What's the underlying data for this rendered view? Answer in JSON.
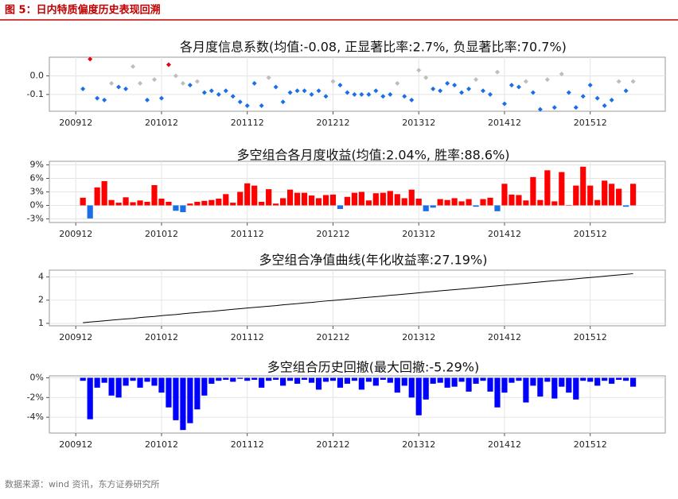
{
  "header": {
    "title": "图 5：日内特质偏度历史表现回溯"
  },
  "source": "数据来源：wind 资讯，东方证券研究所",
  "x_axis": {
    "x": [
      1,
      2,
      3,
      4,
      5,
      6,
      7,
      8,
      9,
      10,
      11,
      12,
      13,
      14,
      15,
      16,
      17,
      18,
      19,
      20,
      21,
      22,
      23,
      24,
      25,
      26,
      27,
      28,
      29,
      30,
      31,
      32,
      33,
      34,
      35,
      36,
      37,
      38,
      39,
      40,
      41,
      42,
      43,
      44,
      45,
      46,
      47,
      48,
      49,
      50,
      51,
      52,
      53,
      54,
      55,
      56,
      57,
      58,
      59,
      60,
      61,
      62,
      63,
      64,
      65,
      66,
      67,
      68,
      69,
      70,
      71,
      72,
      73,
      74,
      75,
      76,
      77,
      78
    ],
    "xlim": [
      -3.7,
      82.5
    ],
    "xticks": [
      {
        "value": 0,
        "label": "200912"
      },
      {
        "value": 12,
        "label": "201012"
      },
      {
        "value": 24,
        "label": "201112"
      },
      {
        "value": 36,
        "label": "201212"
      },
      {
        "value": 48,
        "label": "201312"
      },
      {
        "value": 60,
        "label": "201412"
      },
      {
        "value": 72,
        "label": "201512"
      }
    ]
  },
  "chart_data": [
    {
      "type": "scatter",
      "title": "各月度信息系数(均值:-0.08, 正显著比率:2.7%, 负显著比率:70.7%)",
      "values": [
        -0.07,
        0.09,
        -0.12,
        -0.13,
        -0.04,
        -0.06,
        -0.07,
        0.05,
        -0.04,
        -0.13,
        -0.02,
        -0.12,
        0.06,
        0.0,
        -0.04,
        -0.05,
        -0.03,
        -0.09,
        -0.08,
        -0.1,
        -0.08,
        -0.11,
        -0.14,
        -0.16,
        -0.04,
        -0.16,
        -0.01,
        -0.06,
        -0.14,
        -0.09,
        -0.08,
        -0.08,
        -0.1,
        -0.08,
        -0.11,
        -0.03,
        -0.05,
        -0.09,
        -0.1,
        -0.1,
        -0.1,
        -0.08,
        -0.11,
        -0.1,
        -0.04,
        -0.11,
        -0.13,
        0.03,
        -0.01,
        -0.07,
        -0.08,
        -0.04,
        -0.05,
        -0.09,
        -0.07,
        -0.02,
        -0.08,
        -0.1,
        0.02,
        -0.15,
        -0.05,
        -0.06,
        -0.03,
        -0.09,
        -0.18,
        -0.02,
        -0.17,
        0.01,
        -0.09,
        -0.17,
        -0.11,
        -0.05,
        -0.12,
        -0.16,
        -0.13,
        -0.03,
        -0.08,
        -0.03
      ],
      "colors": [
        "#1a6fe8",
        "#e8000b",
        "#1a6fe8",
        "#1a6fe8",
        "#bdbdbd",
        "#1a6fe8",
        "#1a6fe8",
        "#bdbdbd",
        "#bdbdbd",
        "#1a6fe8",
        "#bdbdbd",
        "#1a6fe8",
        "#e8000b",
        "#bdbdbd",
        "#bdbdbd",
        "#1a6fe8",
        "#bdbdbd",
        "#1a6fe8",
        "#1a6fe8",
        "#1a6fe8",
        "#1a6fe8",
        "#1a6fe8",
        "#1a6fe8",
        "#1a6fe8",
        "#1a6fe8",
        "#1a6fe8",
        "#bdbdbd",
        "#1a6fe8",
        "#1a6fe8",
        "#1a6fe8",
        "#1a6fe8",
        "#1a6fe8",
        "#1a6fe8",
        "#1a6fe8",
        "#1a6fe8",
        "#bdbdbd",
        "#1a6fe8",
        "#1a6fe8",
        "#1a6fe8",
        "#1a6fe8",
        "#1a6fe8",
        "#1a6fe8",
        "#1a6fe8",
        "#1a6fe8",
        "#bdbdbd",
        "#1a6fe8",
        "#1a6fe8",
        "#bdbdbd",
        "#bdbdbd",
        "#1a6fe8",
        "#1a6fe8",
        "#1a6fe8",
        "#1a6fe8",
        "#1a6fe8",
        "#1a6fe8",
        "#bdbdbd",
        "#1a6fe8",
        "#1a6fe8",
        "#bdbdbd",
        "#1a6fe8",
        "#1a6fe8",
        "#1a6fe8",
        "#bdbdbd",
        "#1a6fe8",
        "#1a6fe8",
        "#bdbdbd",
        "#1a6fe8",
        "#bdbdbd",
        "#1a6fe8",
        "#1a6fe8",
        "#1a6fe8",
        "#1a6fe8",
        "#1a6fe8",
        "#1a6fe8",
        "#1a6fe8",
        "#bdbdbd",
        "#1a6fe8",
        "#bdbdbd"
      ],
      "ylim": [
        -0.19,
        0.1
      ],
      "yticks": [
        {
          "value": 0,
          "label": "0.0"
        },
        -0.1
      ],
      "grid": true
    },
    {
      "type": "bar",
      "title": "多空组合各月度收益(均值:2.04%, 胜率:88.6%)",
      "values": [
        1.7,
        -2.9,
        4.0,
        5.4,
        1.2,
        0.6,
        1.8,
        0.7,
        1.1,
        0.8,
        4.5,
        1.5,
        0.8,
        -1.2,
        -1.5,
        0.4,
        0.8,
        1.0,
        1.2,
        1.5,
        2.5,
        0.6,
        3.0,
        4.9,
        4.4,
        0.8,
        3.6,
        0.4,
        1.6,
        3.5,
        2.8,
        2.8,
        2.2,
        1.6,
        2.3,
        2.4,
        -0.8,
        1.9,
        2.8,
        3.0,
        1.1,
        2.7,
        2.8,
        3.2,
        2.5,
        1.6,
        3.5,
        1.5,
        -1.3,
        -0.5,
        1.4,
        1.2,
        1.6,
        0.9,
        1.4,
        -0.3,
        1.4,
        1.7,
        -1.3,
        4.8,
        2.4,
        2.3,
        1.1,
        6.3,
        1.2,
        7.8,
        0.9,
        7.4,
        0.1,
        4.4,
        8.6,
        4.4,
        1.2,
        5.5,
        4.8,
        3.7,
        -0.3,
        4.8
      ],
      "color": "#ff0000",
      "negative_color": "#1a6fe8",
      "ylim": [
        -3.8,
        9.8
      ],
      "yticks": [
        {
          "value": -3,
          "label": "-3%"
        },
        {
          "value": 0,
          "label": "0%"
        },
        {
          "value": 3,
          "label": "3%"
        },
        {
          "value": 6,
          "label": "6%"
        },
        {
          "value": 9,
          "label": "9%"
        }
      ],
      "grid": true
    },
    {
      "type": "line",
      "title": "多空组合净值曲线(年化收益率:27.19%)",
      "values": [
        1.02,
        1.04,
        1.06,
        1.08,
        1.1,
        1.12,
        1.14,
        1.16,
        1.19,
        1.21,
        1.23,
        1.26,
        1.28,
        1.3,
        1.33,
        1.36,
        1.38,
        1.41,
        1.43,
        1.46,
        1.49,
        1.52,
        1.55,
        1.58,
        1.61,
        1.64,
        1.67,
        1.7,
        1.74,
        1.77,
        1.8,
        1.84,
        1.87,
        1.91,
        1.95,
        1.98,
        2.02,
        2.06,
        2.1,
        2.14,
        2.18,
        2.22,
        2.26,
        2.31,
        2.35,
        2.4,
        2.44,
        2.49,
        2.54,
        2.59,
        2.64,
        2.69,
        2.74,
        2.79,
        2.84,
        2.9,
        2.95,
        3.01,
        3.07,
        3.13,
        3.19,
        3.25,
        3.31,
        3.38,
        3.44,
        3.51,
        3.58,
        3.64,
        3.71,
        3.79,
        3.86,
        3.93,
        4.01,
        4.09,
        4.17,
        4.25,
        4.33,
        4.41
      ],
      "color": "#000000",
      "log_scale": true,
      "ylim": [
        0.93,
        4.9
      ],
      "yticks": [
        1,
        2,
        4
      ],
      "grid": true
    },
    {
      "type": "bar",
      "title": "多空组合历史回撤(最大回撤:-5.29%)",
      "values": [
        -0.3,
        -4.2,
        -1.0,
        -0.5,
        -1.8,
        -2.0,
        -0.8,
        -0.3,
        -1.0,
        -0.4,
        -0.8,
        -1.5,
        -3.0,
        -4.3,
        -5.29,
        -4.6,
        -3.2,
        -1.8,
        -0.6,
        -0.3,
        -0.2,
        -0.4,
        -0.1,
        -0.3,
        -0.2,
        -1.0,
        -0.3,
        -0.2,
        -0.8,
        -0.3,
        -0.6,
        -0.2,
        -0.5,
        -1.2,
        -0.4,
        -0.3,
        -1.0,
        -0.6,
        -0.3,
        -1.2,
        -0.4,
        -0.8,
        -0.2,
        -0.5,
        -1.5,
        -0.8,
        -2.0,
        -3.8,
        -2.2,
        -0.6,
        -0.5,
        -1.0,
        -0.9,
        -0.4,
        -1.4,
        -0.6,
        -0.3,
        -1.4,
        -3.0,
        -1.5,
        -0.5,
        -0.3,
        -2.5,
        -0.8,
        -1.9,
        -0.4,
        -2.1,
        -0.9,
        -1.5,
        -2.2,
        -0.3,
        -0.4,
        -0.8,
        -0.3,
        -0.6,
        -0.2,
        -0.3,
        -0.9
      ],
      "color": "#0000ff",
      "negative_color": "#0000ff",
      "ylim": [
        -5.6,
        0.2
      ],
      "yticks": [
        {
          "value": 0,
          "label": "0%"
        },
        {
          "value": -2,
          "label": "-2%"
        },
        {
          "value": -4,
          "label": "-4%"
        }
      ],
      "grid": true
    }
  ]
}
